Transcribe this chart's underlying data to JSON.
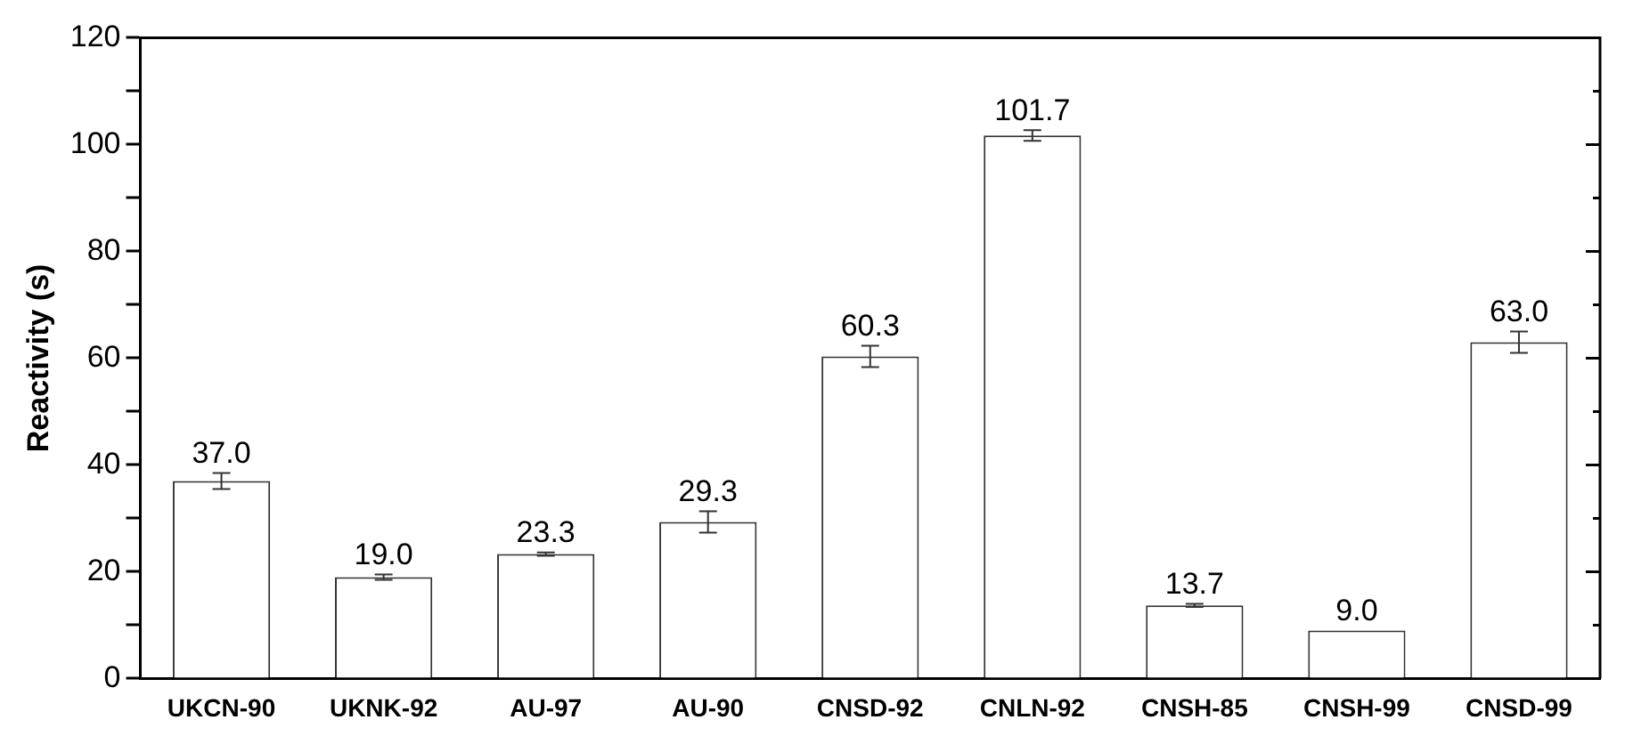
{
  "chart_data": {
    "type": "bar",
    "ylabel": "Reactivity (s)",
    "categories": [
      "UKCN-90",
      "UKNK-92",
      "AU-97",
      "AU-90",
      "CNSD-92",
      "CNLN-92",
      "CNSH-85",
      "CNSH-99",
      "CNSD-99"
    ],
    "values": [
      37.0,
      19.0,
      23.3,
      29.3,
      60.3,
      101.7,
      13.7,
      9.0,
      63.0
    ],
    "errors": [
      1.5,
      0.5,
      0.3,
      2.0,
      2.0,
      1.0,
      0.3,
      null,
      2.0
    ],
    "color": "#ffffff",
    "ylim": [
      0,
      120
    ],
    "yticks": [
      0,
      {
        "value": 10,
        "label": null
      },
      20,
      {
        "value": 30,
        "label": null
      },
      40,
      {
        "value": 50,
        "label": null
      },
      60,
      {
        "value": 70,
        "label": null
      },
      80,
      {
        "value": 90,
        "label": null
      },
      100,
      {
        "value": 110,
        "label": null
      },
      120
    ],
    "value_labels": [
      "37.0",
      "19.0",
      "23.3",
      "29.3",
      "60.3",
      "101.7",
      "13.7",
      "9.0",
      "63.0"
    ],
    "grid": false,
    "legend": false
  }
}
